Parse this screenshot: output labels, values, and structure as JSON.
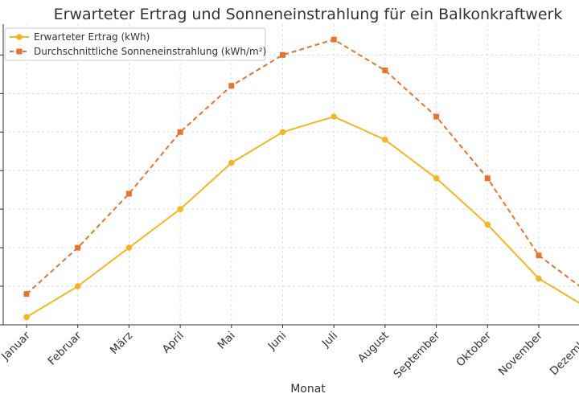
{
  "chart_data": {
    "type": "line",
    "title": "Erwarteter Ertrag und Sonneneinstrahlung für ein Balkonkraftwerk",
    "xlabel": "Monat",
    "ylabel": "",
    "categories": [
      "Januar",
      "Februar",
      "März",
      "April",
      "Mai",
      "Juni",
      "Juli",
      "August",
      "September",
      "Oktober",
      "November",
      "Dezember"
    ],
    "series": [
      {
        "name": "Erwarteter Ertrag (kWh)",
        "color": "#f4b626",
        "line_style": "solid",
        "marker": "circle",
        "values": [
          0.2,
          1.0,
          2.0,
          3.0,
          4.2,
          5.0,
          5.4,
          4.8,
          3.8,
          2.6,
          1.2,
          0.4
        ]
      },
      {
        "name": "Durchschnittliche Sonneneinstrahlung (kWh/m²)",
        "color": "#e8732f",
        "line_style": "dashed",
        "marker": "square",
        "values": [
          0.8,
          2.0,
          3.4,
          5.0,
          6.2,
          7.0,
          7.4,
          6.6,
          5.4,
          3.8,
          1.8,
          0.8
        ]
      }
    ],
    "ylim": [
      0,
      7.8
    ],
    "grid": true,
    "legend": "top-left"
  }
}
